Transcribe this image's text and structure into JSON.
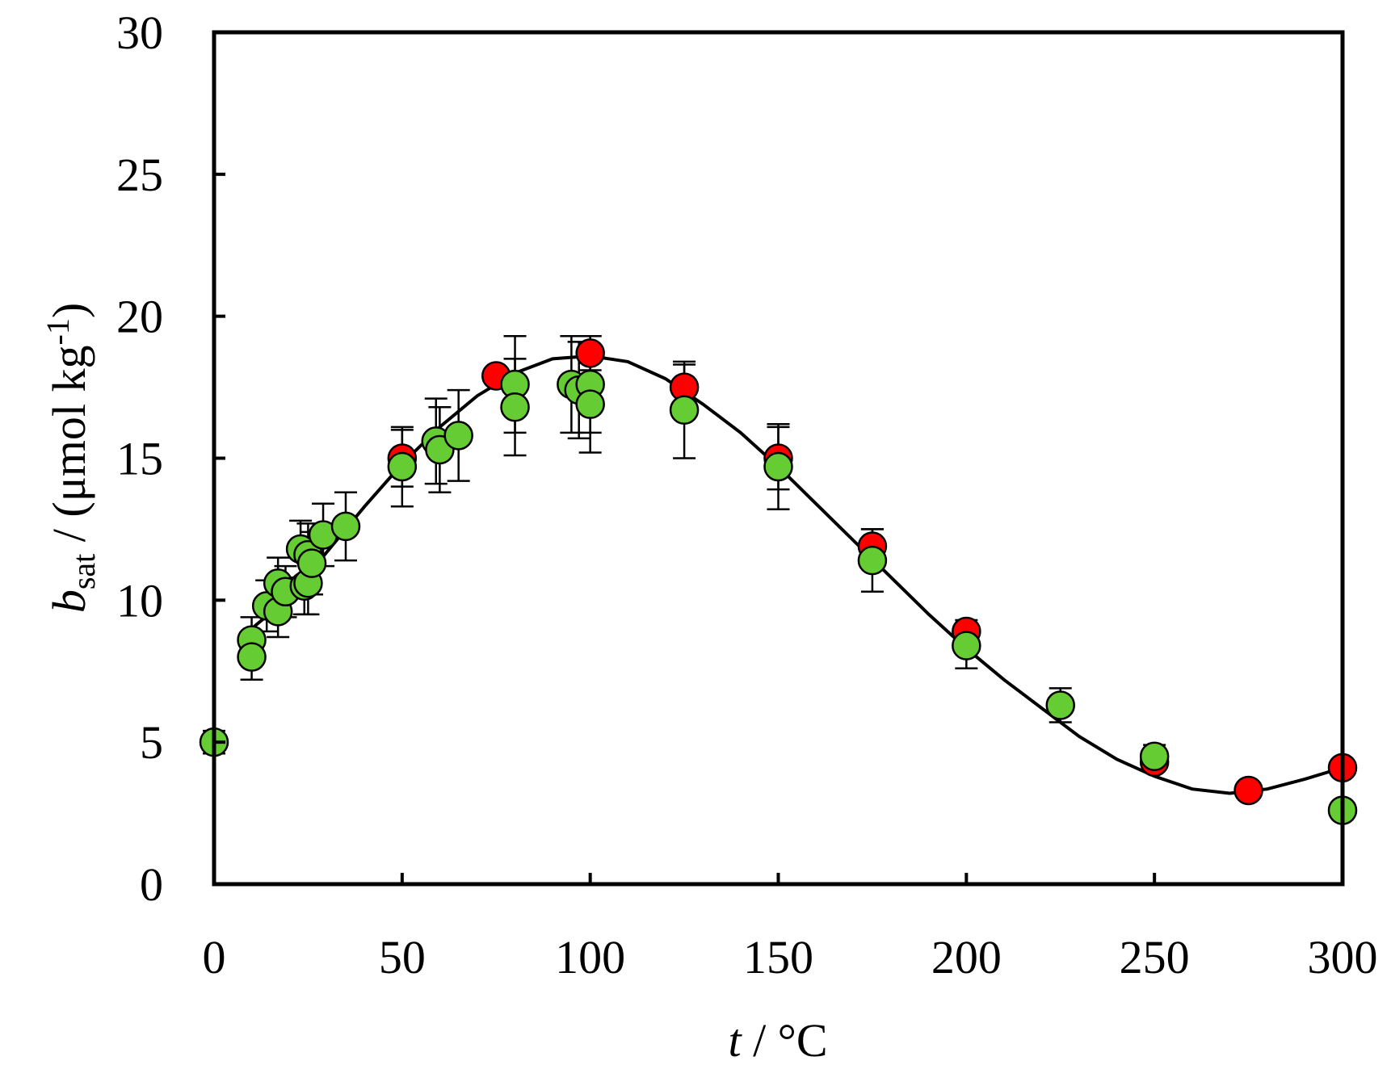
{
  "chart_data": {
    "type": "scatter",
    "title": "",
    "xlabel": {
      "italic": "t",
      "text": " / °C"
    },
    "ylabel": {
      "italic": "b",
      "subscript": "sat",
      "text": " / (μmol kg",
      "superscript": "-1",
      "close": ")"
    },
    "xlim": [
      0,
      300
    ],
    "ylim": [
      0,
      30
    ],
    "xticks": [
      "0",
      "50",
      "100",
      "150",
      "200",
      "250",
      "300"
    ],
    "yticks": [
      "0",
      "5",
      "10",
      "15",
      "20",
      "25",
      "30"
    ],
    "legend": "none",
    "grid": false,
    "colors": {
      "red_series": "#ff0000",
      "green_series": "#66cc33",
      "curve": "#000000",
      "errorbar": "#000000"
    },
    "series": [
      {
        "marker": "red-circle",
        "points": [
          {
            "x": 50,
            "y": 15.0,
            "err": 1.0
          },
          {
            "x": 75,
            "y": 17.9,
            "err": 0
          },
          {
            "x": 100,
            "y": 18.7,
            "err": 0.6
          },
          {
            "x": 125,
            "y": 17.5,
            "err": 0.8
          },
          {
            "x": 150,
            "y": 15.0,
            "err": 1.1
          },
          {
            "x": 175,
            "y": 11.9,
            "err": 0.6
          },
          {
            "x": 200,
            "y": 8.9,
            "err": 0.4
          },
          {
            "x": 250,
            "y": 4.3,
            "err": 0
          },
          {
            "x": 275,
            "y": 3.3,
            "err": 0
          },
          {
            "x": 300,
            "y": 4.1,
            "err": 0
          }
        ]
      },
      {
        "marker": "green-circle",
        "points": [
          {
            "x": 0,
            "y": 5.0,
            "err": 0.4
          },
          {
            "x": 10,
            "y": 8.6,
            "err": 0.8
          },
          {
            "x": 10,
            "y": 8.0,
            "err": 0.8
          },
          {
            "x": 14,
            "y": 9.8,
            "err": 0.9
          },
          {
            "x": 17,
            "y": 10.6,
            "err": 0.9
          },
          {
            "x": 17,
            "y": 9.6,
            "err": 0.9
          },
          {
            "x": 19,
            "y": 10.3,
            "err": 0.9
          },
          {
            "x": 23,
            "y": 11.8,
            "err": 1.0
          },
          {
            "x": 24,
            "y": 10.5,
            "err": 1.0
          },
          {
            "x": 25,
            "y": 11.6,
            "err": 1.1
          },
          {
            "x": 25,
            "y": 10.6,
            "err": 1.1
          },
          {
            "x": 26,
            "y": 11.3,
            "err": 1.1
          },
          {
            "x": 29,
            "y": 12.3,
            "err": 1.1
          },
          {
            "x": 35,
            "y": 12.6,
            "err": 1.2
          },
          {
            "x": 50,
            "y": 14.7,
            "err": 1.4
          },
          {
            "x": 59,
            "y": 15.6,
            "err": 1.5
          },
          {
            "x": 60,
            "y": 15.3,
            "err": 1.5
          },
          {
            "x": 65,
            "y": 15.8,
            "err": 1.6
          },
          {
            "x": 80,
            "y": 17.6,
            "err": 1.7
          },
          {
            "x": 80,
            "y": 16.8,
            "err": 1.7
          },
          {
            "x": 95,
            "y": 17.6,
            "err": 1.7
          },
          {
            "x": 97,
            "y": 17.4,
            "err": 1.7
          },
          {
            "x": 100,
            "y": 17.6,
            "err": 1.7
          },
          {
            "x": 100,
            "y": 16.9,
            "err": 1.7
          },
          {
            "x": 125,
            "y": 16.7,
            "err": 1.7
          },
          {
            "x": 150,
            "y": 14.7,
            "err": 1.5
          },
          {
            "x": 175,
            "y": 11.4,
            "err": 1.1
          },
          {
            "x": 200,
            "y": 8.4,
            "err": 0.8
          },
          {
            "x": 225,
            "y": 6.3,
            "err": 0.6
          },
          {
            "x": 250,
            "y": 4.5,
            "err": 0.4
          },
          {
            "x": 300,
            "y": 2.6,
            "err": 0
          }
        ]
      }
    ],
    "fit_curve": {
      "x": [
        10,
        20,
        30,
        40,
        50,
        60,
        70,
        80,
        90,
        100,
        110,
        120,
        130,
        140,
        150,
        160,
        170,
        180,
        190,
        200,
        210,
        220,
        230,
        240,
        250,
        260,
        270,
        280,
        290,
        300
      ],
      "y": [
        9.0,
        10.1,
        11.7,
        13.3,
        14.8,
        16.1,
        17.2,
        18.0,
        18.5,
        18.6,
        18.4,
        17.8,
        16.9,
        15.9,
        14.7,
        13.4,
        12.1,
        10.8,
        9.5,
        8.3,
        7.2,
        6.2,
        5.2,
        4.4,
        3.8,
        3.35,
        3.2,
        3.35,
        3.7,
        4.1
      ]
    }
  }
}
